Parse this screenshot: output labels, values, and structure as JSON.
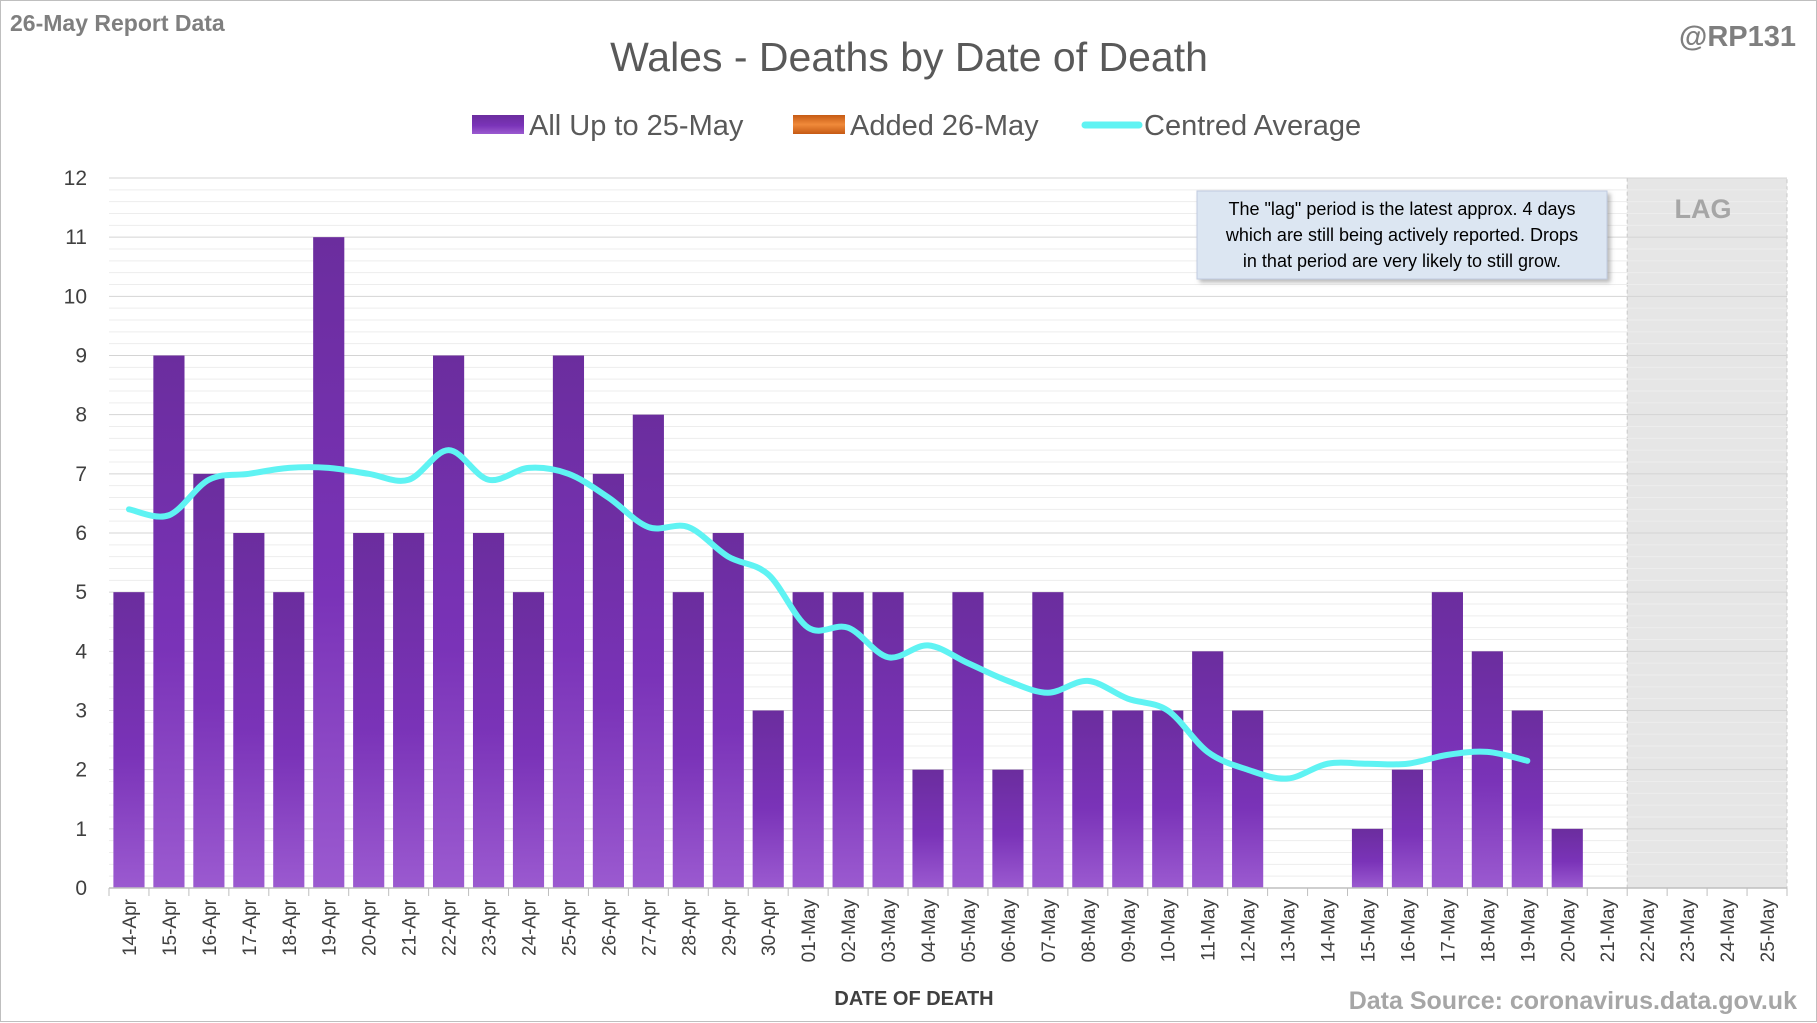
{
  "header": {
    "report_label": "26-May Report Data",
    "handle": "@RP131"
  },
  "footer": {
    "source": "Data Source: coronavirus.data.gov.uk"
  },
  "chart_data": {
    "type": "bar",
    "title": "Wales - Deaths by Date of Death",
    "xlabel": "DATE OF DEATH",
    "ylabel": "",
    "ylim": [
      0,
      12
    ],
    "yticks": [
      0,
      1,
      2,
      3,
      4,
      5,
      6,
      7,
      8,
      9,
      10,
      11,
      12
    ],
    "grid": true,
    "legend_position": "top-center",
    "categories": [
      "14-Apr",
      "15-Apr",
      "16-Apr",
      "17-Apr",
      "18-Apr",
      "19-Apr",
      "20-Apr",
      "21-Apr",
      "22-Apr",
      "23-Apr",
      "24-Apr",
      "25-Apr",
      "26-Apr",
      "27-Apr",
      "28-Apr",
      "29-Apr",
      "30-Apr",
      "01-May",
      "02-May",
      "03-May",
      "04-May",
      "05-May",
      "06-May",
      "07-May",
      "08-May",
      "09-May",
      "10-May",
      "11-May",
      "12-May",
      "13-May",
      "14-May",
      "15-May",
      "16-May",
      "17-May",
      "18-May",
      "19-May",
      "20-May",
      "21-May",
      "22-May",
      "23-May",
      "24-May",
      "25-May"
    ],
    "series": [
      {
        "name": "All Up to 25-May",
        "type": "bar",
        "color": "#7030a0",
        "values": [
          5,
          9,
          7,
          6,
          5,
          11,
          6,
          6,
          9,
          6,
          5,
          9,
          7,
          8,
          5,
          6,
          3,
          5,
          5,
          5,
          2,
          5,
          2,
          5,
          3,
          3,
          3,
          4,
          3,
          0,
          0,
          1,
          2,
          5,
          4,
          3,
          1,
          0,
          0,
          0,
          0,
          0
        ]
      },
      {
        "name": "Added 26-May",
        "type": "bar",
        "color": "#e07020",
        "values": [
          0,
          0,
          0,
          0,
          0,
          0,
          0,
          0,
          0,
          0,
          0,
          0,
          0,
          0,
          0,
          0,
          0,
          0,
          0,
          0,
          0,
          0,
          0,
          0,
          0,
          0,
          0,
          0,
          0,
          0,
          0,
          0,
          0,
          0,
          0,
          0,
          0,
          0,
          0,
          0,
          0,
          0
        ]
      },
      {
        "name": "Centred Average",
        "type": "line",
        "color": "#5ff3f3",
        "values": [
          6.4,
          6.3,
          6.9,
          7.0,
          7.1,
          7.1,
          7.0,
          6.9,
          7.4,
          6.9,
          7.1,
          7.0,
          6.6,
          6.1,
          6.1,
          5.6,
          5.3,
          4.4,
          4.4,
          3.9,
          4.1,
          3.8,
          3.5,
          3.3,
          3.5,
          3.2,
          3.0,
          2.3,
          2.0,
          1.85,
          2.1,
          2.1,
          2.1,
          2.25,
          2.3,
          2.15,
          null,
          null,
          null,
          null,
          null,
          null
        ]
      }
    ],
    "lag_region": {
      "label": "LAG",
      "start_category": "22-May",
      "end_category": "25-May"
    },
    "annotation": {
      "lines": [
        "The \"lag\" period is the latest approx. 4 days",
        "which are still being actively reported. Drops",
        "in that period are very likely to still grow."
      ]
    }
  }
}
